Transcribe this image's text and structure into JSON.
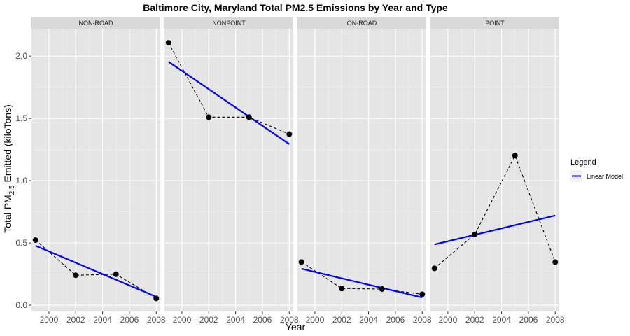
{
  "chart_data": {
    "type": "line",
    "title": "Baltimore City, Maryland Total PM2.5 Emissions by Year and Type",
    "xlabel": "Year",
    "ylabel": {
      "prefix": "Total PM",
      "subscript": "2.5",
      "suffix": " Emitted (kiloTons)"
    },
    "xlim": [
      1998.7,
      2008.3
    ],
    "ylim": [
      -0.05,
      2.22
    ],
    "x_ticks": [
      2000,
      2002,
      2004,
      2006,
      2008
    ],
    "y_ticks": [
      0.0,
      0.5,
      1.0,
      1.5,
      2.0
    ],
    "y_tick_labels": [
      "0.0",
      "0.5",
      "1.0",
      "1.5",
      "2.0"
    ],
    "grid": true,
    "legend": {
      "title": "Legend",
      "position": "right",
      "entries": [
        {
          "label": "Linear Model",
          "color": "#0000ff"
        }
      ]
    },
    "point_color": "#000000",
    "observed_line_style": "dashed",
    "facets": [
      {
        "label": "NON-ROAD",
        "x": [
          1999,
          2002,
          2005,
          2008
        ],
        "y": [
          0.523,
          0.241,
          0.249,
          0.055
        ],
        "fit": {
          "x": [
            1999,
            2008
          ],
          "y": [
            0.478,
            0.068
          ]
        }
      },
      {
        "label": "NONPOINT",
        "x": [
          1999,
          2002,
          2005,
          2008
        ],
        "y": [
          2.107,
          1.51,
          1.51,
          1.374
        ],
        "fit": {
          "x": [
            1999,
            2008
          ],
          "y": [
            1.955,
            1.294
          ]
        }
      },
      {
        "label": "ON-ROAD",
        "x": [
          1999,
          2002,
          2005,
          2008
        ],
        "y": [
          0.347,
          0.134,
          0.13,
          0.088
        ],
        "fit": {
          "x": [
            1999,
            2008
          ],
          "y": [
            0.293,
            0.062
          ]
        }
      },
      {
        "label": "POINT",
        "x": [
          1999,
          2002,
          2005,
          2008
        ],
        "y": [
          0.296,
          0.569,
          1.202,
          0.346
        ],
        "fit": {
          "x": [
            1999,
            2008
          ],
          "y": [
            0.488,
            0.721
          ]
        }
      }
    ]
  }
}
